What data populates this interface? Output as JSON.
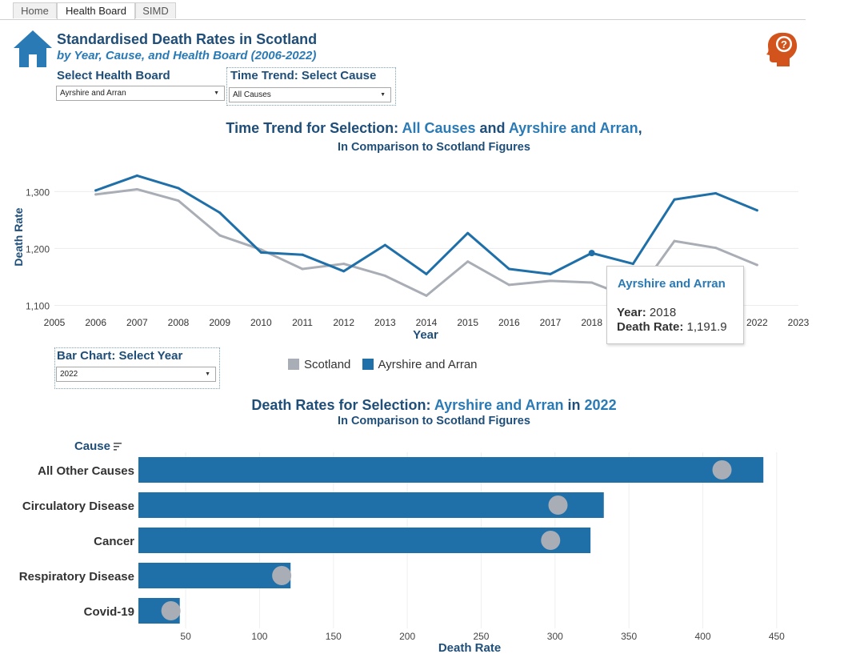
{
  "tabs": [
    {
      "label": "Home"
    },
    {
      "label": "Health Board"
    },
    {
      "label": "SIMD"
    }
  ],
  "header": {
    "title": "Standardised Death Rates in Scotland",
    "subtitle": "by Year, Cause, and Health Board (2006-2022)"
  },
  "icons": {
    "home": "home-icon",
    "help": "head-question-icon"
  },
  "filters": {
    "health_board": {
      "label": "Select Health Board",
      "value": "Ayrshire and Arran"
    },
    "time_trend_cause": {
      "label": "Time Trend: Select Cause",
      "value": "All Causes"
    },
    "bar_year": {
      "label": "Bar Chart: Select Year",
      "value": "2022"
    }
  },
  "colors": {
    "board": "#1f6fa8",
    "scotland": "#a9adb5",
    "title": "#1f4e79",
    "highlight": "#2a7ab5",
    "accent_icon": "#d2541c"
  },
  "line_chart": {
    "title": {
      "prefix": "Time Trend for Selection: ",
      "cause": "All Causes",
      "mid": " and ",
      "board": "Ayrshire and Arran",
      "suffix": ","
    },
    "subtitle": "In Comparison to Scotland Figures",
    "legend": {
      "scotland": "Scotland",
      "board": "Ayrshire and Arran"
    },
    "tooltip": {
      "name": "Ayrshire and Arran",
      "year_label": "Year:",
      "year": "2018",
      "rate_label": "Death Rate:",
      "rate": "1,191.9"
    }
  },
  "bar_chart": {
    "title": {
      "prefix": "Death Rates for Selection: ",
      "board": "Ayrshire and Arran",
      "mid": " in ",
      "year": "2022"
    },
    "subtitle": "In Comparison to Scotland Figures",
    "cause_header": "Cause"
  },
  "chart_data": [
    {
      "type": "line",
      "xlabel": "Year",
      "ylabel": "Death Rate",
      "x": [
        2006,
        2007,
        2008,
        2009,
        2010,
        2011,
        2012,
        2013,
        2014,
        2015,
        2016,
        2017,
        2018,
        2019,
        2020,
        2021,
        2022
      ],
      "xlim": [
        2005,
        2023
      ],
      "x_ticks": [
        "2005",
        "2006",
        "2007",
        "2008",
        "2009",
        "2010",
        "2011",
        "2012",
        "2013",
        "2014",
        "2015",
        "2016",
        "2017",
        "2018",
        "2019",
        "2020",
        "2021",
        "2022",
        "2023"
      ],
      "y_ticks": [
        "1,100",
        "1,200",
        "1,300"
      ],
      "ylim": [
        1095,
        1330
      ],
      "grid": true,
      "legend_position": "bottom-center",
      "series": [
        {
          "name": "Scotland",
          "values": [
            1295,
            1304,
            1284,
            1223,
            1198,
            1164,
            1173,
            1152,
            1117,
            1177,
            1136,
            1143,
            1140,
            1112,
            1213,
            1201,
            1171
          ]
        },
        {
          "name": "Ayrshire and Arran",
          "values": [
            1302,
            1328,
            1306,
            1263,
            1193,
            1189,
            1160,
            1206,
            1155,
            1227,
            1164,
            1155,
            1191.9,
            1173,
            1286,
            1297,
            1267
          ]
        }
      ],
      "highlighted_point": {
        "series": "Ayrshire and Arran",
        "x": 2018,
        "y": 1191.9
      }
    },
    {
      "type": "bar",
      "orientation": "horizontal",
      "categories": [
        "All Other Causes",
        "Circulatory Disease",
        "Cancer",
        "Respiratory Disease",
        "Covid-19"
      ],
      "series": [
        {
          "name": "Ayrshire and Arran",
          "values": [
            441,
            333,
            324,
            121,
            46
          ]
        },
        {
          "name": "Scotland",
          "values": [
            413,
            302,
            297,
            115,
            40
          ]
        }
      ],
      "xlabel": "Death Rate",
      "ylabel": "Cause",
      "x_ticks": [
        "50",
        "100",
        "150",
        "200",
        "250",
        "300",
        "350",
        "400",
        "450"
      ],
      "xlim": [
        18,
        462
      ],
      "grid": true
    }
  ]
}
